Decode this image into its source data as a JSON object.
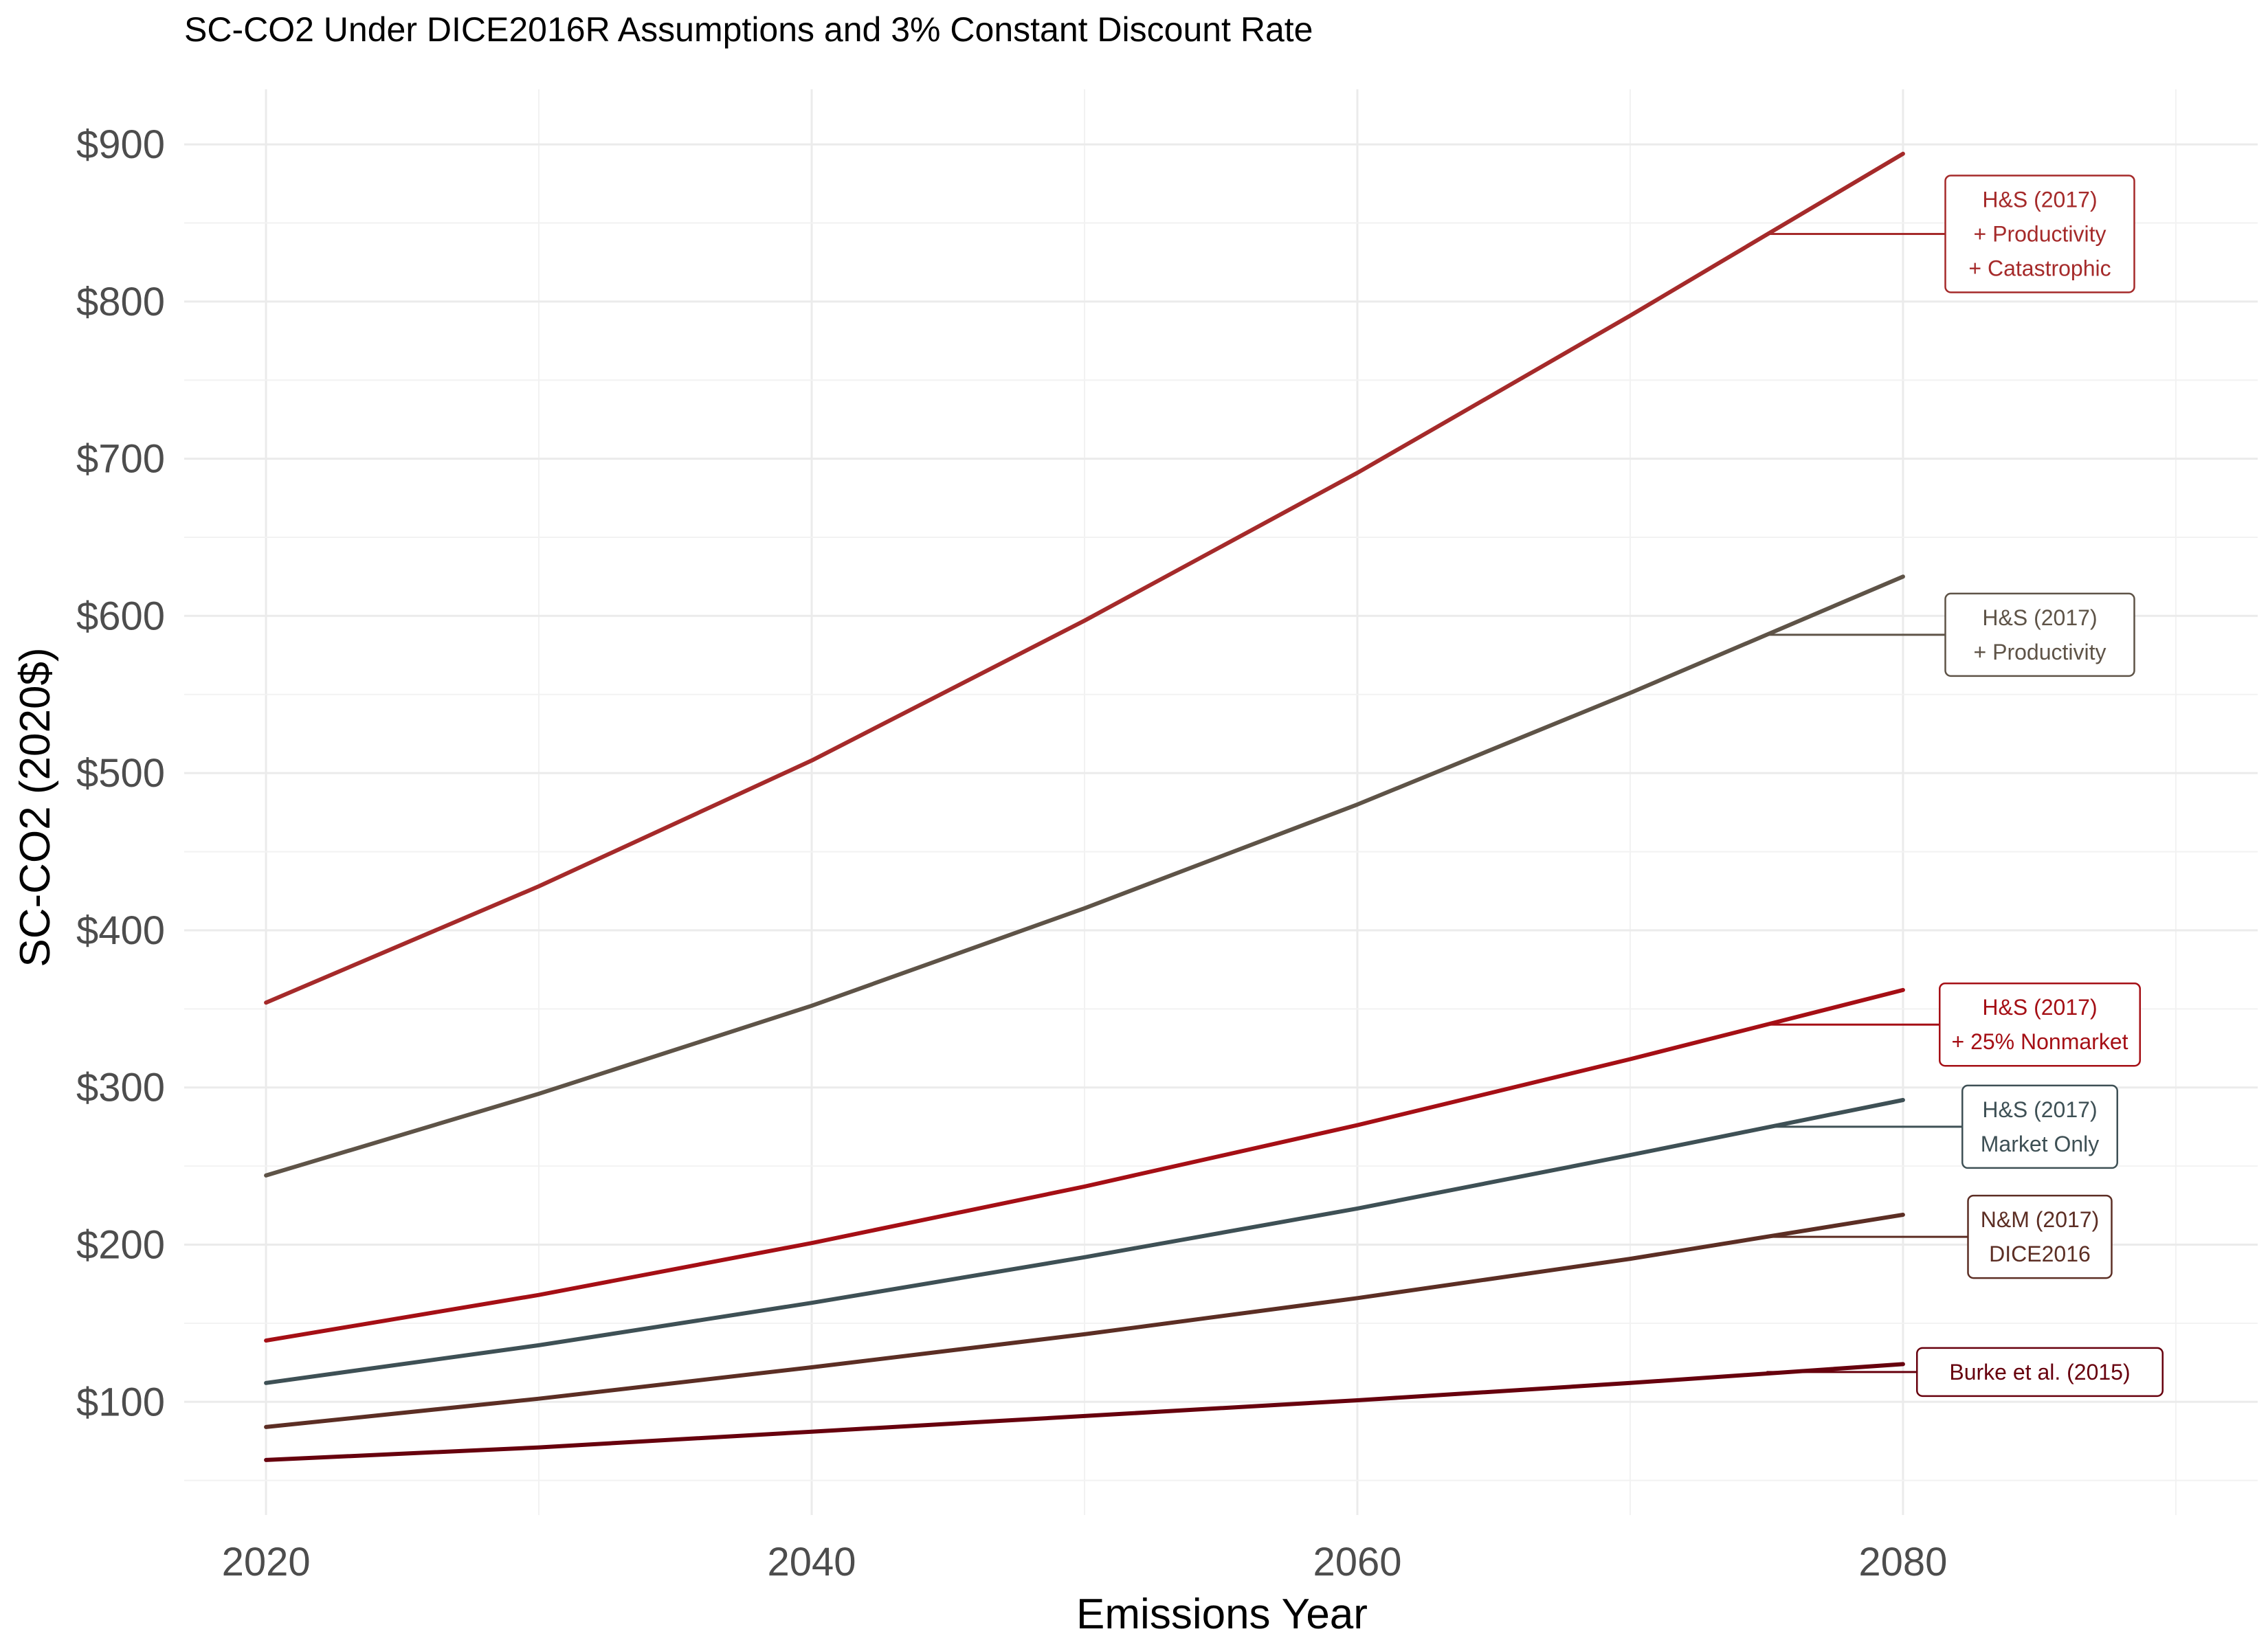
{
  "chart_data": {
    "type": "line",
    "title": "SC-CO2 Under DICE2016R Assumptions and 3% Constant Discount Rate",
    "xlabel": "Emissions Year",
    "ylabel": "SC-CO2 (2020$)",
    "xlim": [
      2017,
      2093
    ],
    "ylim": [
      28,
      935
    ],
    "x_ticks": [
      2020,
      2040,
      2060,
      2080
    ],
    "x_tick_labels": [
      "2020",
      "2040",
      "2060",
      "2080"
    ],
    "y_ticks": [
      100,
      200,
      300,
      400,
      500,
      600,
      700,
      800,
      900
    ],
    "y_tick_labels": [
      "$100",
      "$200",
      "$300",
      "$400",
      "$500",
      "$600",
      "$700",
      "$800",
      "$900"
    ],
    "grid": true,
    "x": [
      2020,
      2030,
      2040,
      2050,
      2060,
      2070,
      2080
    ],
    "series": [
      {
        "name": "H&S (2017)\n+ Productivity\n+ Catastrophic",
        "color": "#a52a2a",
        "values": [
          354,
          428,
          508,
          597,
          691,
          791,
          894
        ]
      },
      {
        "name": "H&S (2017)\n+ Productivity",
        "color": "#5e5347",
        "values": [
          244,
          296,
          352,
          414,
          480,
          551,
          625
        ]
      },
      {
        "name": "H&S (2017)\n+ 25% Nonmarket",
        "color": "#a50f15",
        "values": [
          139,
          168,
          201,
          237,
          276,
          318,
          362
        ]
      },
      {
        "name": "H&S (2017)\nMarket Only",
        "color": "#3e5055",
        "values": [
          112,
          136,
          163,
          192,
          223,
          257,
          292
        ]
      },
      {
        "name": "N&M (2017)\nDICE2016",
        "color": "#5c2e24",
        "values": [
          84,
          102,
          122,
          143,
          166,
          191,
          219
        ]
      },
      {
        "name": "Burke et al. (2015)",
        "color": "#67000d",
        "values": [
          63,
          71,
          81,
          91,
          101,
          112,
          124
        ]
      }
    ],
    "annotations": [
      {
        "series": 0,
        "lines": [
          "H&S (2017)",
          "+ Productivity",
          "+ Catastrophic"
        ],
        "anchor_x": 2075,
        "anchor_y": 843
      },
      {
        "series": 1,
        "lines": [
          "H&S (2017)",
          "+ Productivity"
        ],
        "anchor_x": 2075,
        "anchor_y": 588
      },
      {
        "series": 2,
        "lines": [
          "H&S (2017)",
          "+ 25% Nonmarket"
        ],
        "anchor_x": 2075,
        "anchor_y": 340
      },
      {
        "series": 3,
        "lines": [
          "H&S (2017)",
          "Market Only"
        ],
        "anchor_x": 2075,
        "anchor_y": 275
      },
      {
        "series": 4,
        "lines": [
          "N&M (2017)",
          "DICE2016"
        ],
        "anchor_x": 2075,
        "anchor_y": 205
      },
      {
        "series": 5,
        "lines": [
          "Burke et al. (2015)"
        ],
        "anchor_x": 2075,
        "anchor_y": 119
      }
    ]
  }
}
